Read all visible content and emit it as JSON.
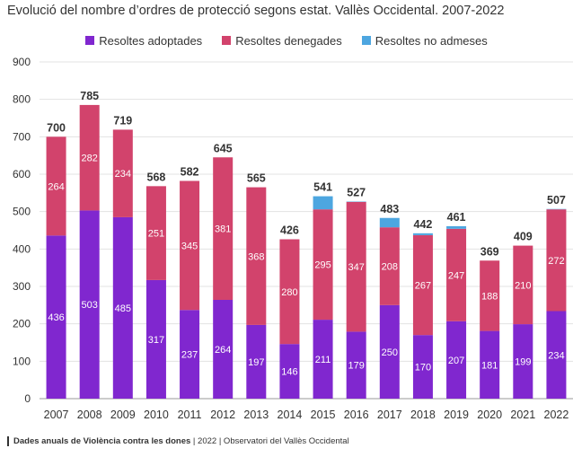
{
  "chart_data": {
    "type": "bar",
    "stacked": true,
    "title": "Evolució del nombre d’ordres de protecció segons estat. Vallès Occidental. 2007-2022",
    "categories": [
      "2007",
      "2008",
      "2009",
      "2010",
      "2011",
      "2012",
      "2013",
      "2014",
      "2015",
      "2016",
      "2017",
      "2018",
      "2019",
      "2020",
      "2021",
      "2022"
    ],
    "series": [
      {
        "name": "Resoltes adoptades",
        "color": "#8027cf",
        "values": [
          436,
          503,
          485,
          317,
          237,
          264,
          197,
          146,
          211,
          179,
          250,
          170,
          207,
          181,
          199,
          234
        ]
      },
      {
        "name": "Resoltes denegades",
        "color": "#d2436c",
        "values": [
          264,
          282,
          234,
          251,
          345,
          381,
          368,
          280,
          295,
          347,
          208,
          267,
          247,
          188,
          210,
          272
        ]
      },
      {
        "name": "Resoltes no admeses",
        "color": "#4da6e0",
        "values": [
          0,
          0,
          0,
          0,
          0,
          0,
          0,
          0,
          35,
          1,
          25,
          5,
          7,
          0,
          0,
          1
        ]
      }
    ],
    "totals": [
      700,
      785,
      719,
      568,
      582,
      645,
      565,
      426,
      541,
      527,
      483,
      442,
      461,
      369,
      409,
      507
    ],
    "y_ticks": [
      0,
      100,
      200,
      300,
      400,
      500,
      600,
      700,
      800,
      900
    ],
    "ylim": [
      0,
      900
    ],
    "grid": true,
    "legend_position": "top-center"
  },
  "footer": {
    "source_bold": "Dades anuals de Violència contra les dones",
    "source_rest": " | 2022 | Observatori del Vallès Occidental"
  }
}
